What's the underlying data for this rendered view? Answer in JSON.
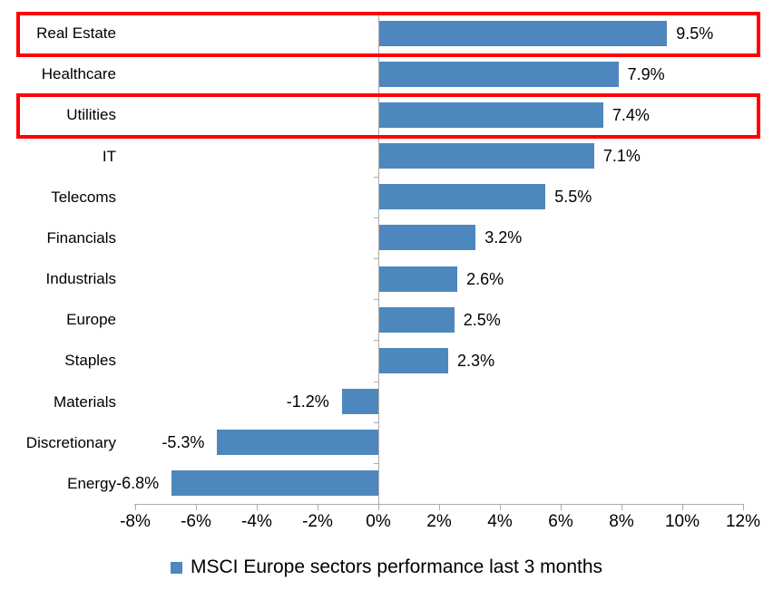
{
  "chart_data": {
    "type": "bar",
    "orientation": "horizontal",
    "legend": "MSCI Europe sectors performance last 3 months",
    "legend_position": "bottom",
    "grid": false,
    "categories": [
      "Real Estate",
      "Healthcare",
      "Utilities",
      "IT",
      "Telecoms",
      "Financials",
      "Industrials",
      "Europe",
      "Staples",
      "Materials",
      "Discretionary",
      "Energy"
    ],
    "values": [
      9.5,
      7.9,
      7.4,
      7.1,
      5.5,
      3.2,
      2.6,
      2.5,
      2.3,
      -1.2,
      -5.3,
      -6.8
    ],
    "value_labels": [
      "9.5%",
      "7.9%",
      "7.4%",
      "7.1%",
      "5.5%",
      "3.2%",
      "2.6%",
      "2.5%",
      "2.3%",
      "-1.2%",
      "-5.3%",
      "-6.8%"
    ],
    "highlighted_categories": [
      "Real Estate",
      "Utilities"
    ],
    "xlim": [
      -8,
      12
    ],
    "x_ticks": [
      {
        "value": -8,
        "label": "-8%"
      },
      {
        "value": -6,
        "label": "-6%"
      },
      {
        "value": -4,
        "label": "-4%"
      },
      {
        "value": -2,
        "label": "-2%"
      },
      {
        "value": 0,
        "label": "0%"
      },
      {
        "value": 2,
        "label": "2%"
      },
      {
        "value": 4,
        "label": "4%"
      },
      {
        "value": 6,
        "label": "6%"
      },
      {
        "value": 8,
        "label": "8%"
      },
      {
        "value": 10,
        "label": "10%"
      },
      {
        "value": 12,
        "label": "12%"
      }
    ],
    "colors": {
      "bar": "#4e87be",
      "highlight_box": "#ff0000",
      "axis": "#ababab",
      "text": "#000000",
      "background": "#ffffff"
    }
  }
}
